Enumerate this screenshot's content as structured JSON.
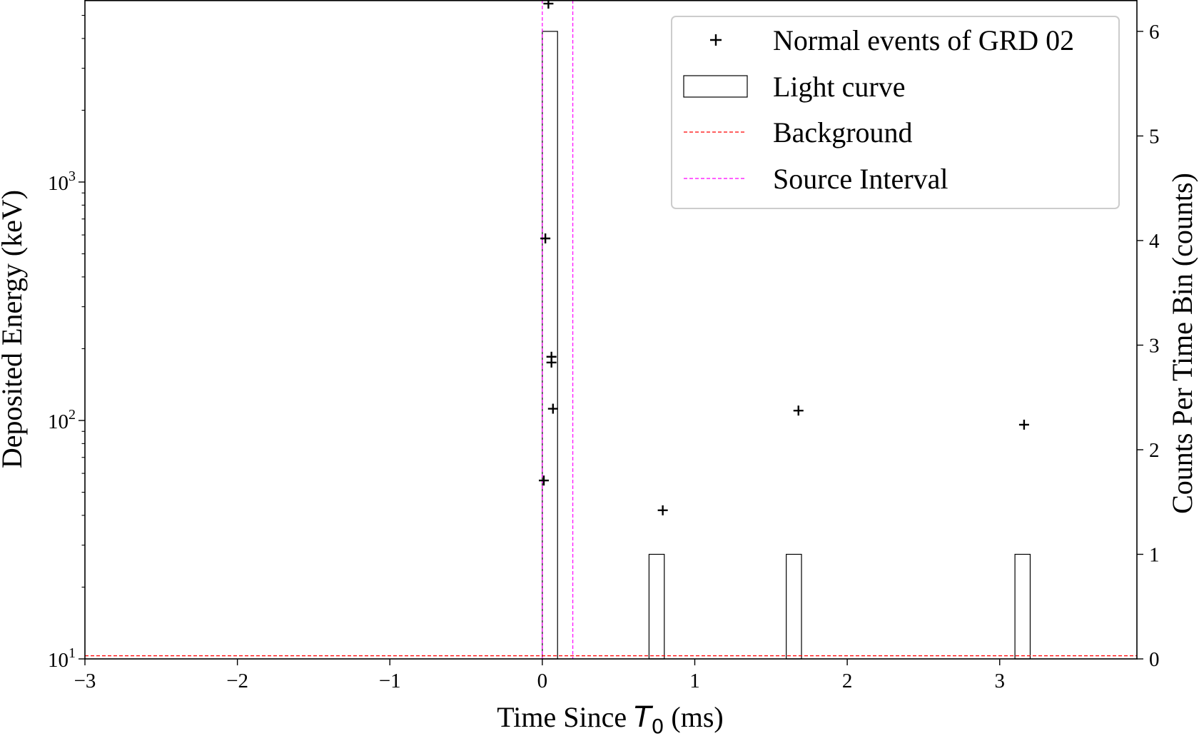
{
  "chart_data": {
    "type": "scatter",
    "xlabel_prefix": "Time Since ",
    "xlabel_symbol": "T",
    "xlabel_subscript": "0",
    "xlabel_suffix": " (ms)",
    "ylabel": "Deposited Energy (keV)",
    "y2label": "Counts Per Time Bin (counts)",
    "xlim": [
      -3,
      3.9
    ],
    "ylim": [
      10,
      5800
    ],
    "yscale": "log",
    "y2lim": [
      0,
      6.3
    ],
    "x_ticks": [
      {
        "value": -3,
        "label": "−3"
      },
      {
        "value": -2,
        "label": "−2"
      },
      {
        "value": -1,
        "label": "−1"
      },
      {
        "value": 0,
        "label": "0"
      },
      {
        "value": 1,
        "label": "1"
      },
      {
        "value": 2,
        "label": "2"
      },
      {
        "value": 3,
        "label": "3"
      }
    ],
    "y_ticks": [
      {
        "value": 10,
        "base": "10",
        "exp": "1"
      },
      {
        "value": 100,
        "base": "10",
        "exp": "2"
      },
      {
        "value": 1000,
        "base": "10",
        "exp": "3"
      }
    ],
    "y2_ticks": [
      {
        "value": 0,
        "label": "0"
      },
      {
        "value": 1,
        "label": "1"
      },
      {
        "value": 2,
        "label": "2"
      },
      {
        "value": 3,
        "label": "3"
      },
      {
        "value": 4,
        "label": "4"
      },
      {
        "value": 5,
        "label": "5"
      },
      {
        "value": 6,
        "label": "6"
      }
    ],
    "series": [
      {
        "name": "Normal events of GRD 02",
        "kind": "scatter",
        "marker": "+",
        "color": "#000000",
        "points": [
          {
            "x": 0.04,
            "y": 5600
          },
          {
            "x": 0.02,
            "y": 580
          },
          {
            "x": 0.06,
            "y": 185
          },
          {
            "x": 0.06,
            "y": 175
          },
          {
            "x": 0.07,
            "y": 112
          },
          {
            "x": 0.01,
            "y": 56
          },
          {
            "x": 0.79,
            "y": 42
          },
          {
            "x": 1.68,
            "y": 110
          },
          {
            "x": 3.16,
            "y": 96
          }
        ]
      },
      {
        "name": "Light curve",
        "kind": "histogram",
        "color": "#000000",
        "bin_width": 0.1,
        "bins": [
          {
            "x": 0.0,
            "count": 6
          },
          {
            "x": 0.7,
            "count": 1
          },
          {
            "x": 1.6,
            "count": 1
          },
          {
            "x": 3.1,
            "count": 1
          }
        ]
      },
      {
        "name": "Background",
        "kind": "hline",
        "color": "#ff0000",
        "count": 0.03
      },
      {
        "name": "Source Interval",
        "kind": "vlines",
        "color": "#ff00ff",
        "x": [
          0.0,
          0.2
        ]
      }
    ],
    "legend_position": "top-right",
    "grid": false
  }
}
